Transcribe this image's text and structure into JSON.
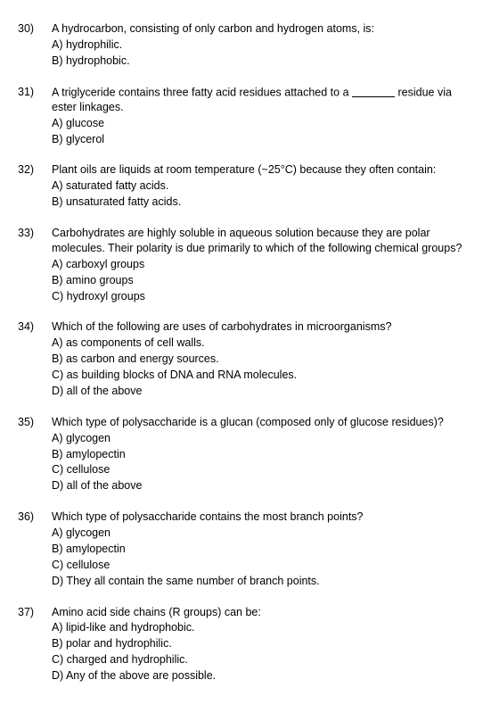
{
  "questions": [
    {
      "num": "30)",
      "stem": "A hydrocarbon, consisting of only carbon and hydrogen atoms, is:",
      "options": [
        "A) hydrophilic.",
        "B) hydrophobic."
      ]
    },
    {
      "num": "31)",
      "stem": "A triglyceride contains three fatty acid residues attached to a ________ residue via ester linkages.",
      "options": [
        "A) glucose",
        "B) glycerol"
      ]
    },
    {
      "num": "32)",
      "stem": "Plant oils are liquids at room temperature (~25°C) because they often contain:",
      "options": [
        "A) saturated fatty acids.",
        "B) unsaturated fatty acids."
      ]
    },
    {
      "num": "33)",
      "stem": "Carbohydrates are highly soluble in aqueous solution because they are polar molecules. Their polarity is due primarily to which of the following chemical groups?",
      "options": [
        "A) carboxyl groups",
        "B) amino groups",
        "C) hydroxyl groups"
      ]
    },
    {
      "num": "34)",
      "stem": "Which of the following are uses of carbohydrates in microorganisms?",
      "options": [
        "A) as components of cell walls.",
        "B) as carbon and energy sources.",
        "C) as building blocks of DNA and RNA molecules.",
        "D) all of the above"
      ]
    },
    {
      "num": "35)",
      "stem": "Which type of polysaccharide is a glucan (composed only of glucose residues)?",
      "options": [
        "A) glycogen",
        "B) amylopectin",
        "C) cellulose",
        "D) all of the above"
      ]
    },
    {
      "num": "36)",
      "stem": "Which type of polysaccharide contains the most branch points?",
      "options": [
        "A) glycogen",
        "B) amylopectin",
        "C) cellulose",
        "D) They all contain the same number of branch points."
      ]
    },
    {
      "num": "37)",
      "stem": "Amino acid side chains (R groups) can be:",
      "options": [
        "A) lipid-like and hydrophobic.",
        "B) polar and hydrophilic.",
        "C) charged and hydrophilic.",
        "D) Any of the above are possible."
      ]
    }
  ]
}
